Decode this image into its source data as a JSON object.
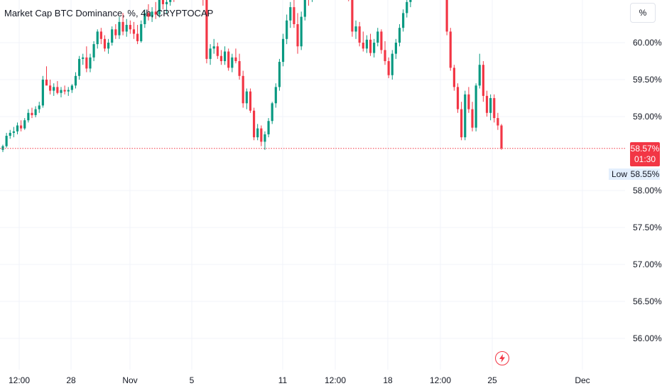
{
  "header": {
    "title": "Market Cap BTC Dominance, %, 4h, CRYPTOCAP"
  },
  "scale_button": {
    "label": "%"
  },
  "price_badge": {
    "value": "58.57%",
    "countdown": "01:30"
  },
  "low_marker": {
    "label": "Low",
    "value": "58.55%"
  },
  "event_icon": {
    "icon": "lightning-icon"
  },
  "colors": {
    "up": "#089981",
    "down": "#f23645",
    "grid": "#f0f3fa",
    "current_line": "#f23645"
  },
  "chart_data": {
    "type": "candlestick",
    "y_axis": {
      "ticks": [
        {
          "value": 60.0,
          "label": "60.00%"
        },
        {
          "value": 59.5,
          "label": "59.50%"
        },
        {
          "value": 59.0,
          "label": "59.00%"
        },
        {
          "value": 58.0,
          "label": "58.00%"
        },
        {
          "value": 57.5,
          "label": "57.50%"
        },
        {
          "value": 57.0,
          "label": "57.00%"
        },
        {
          "value": 56.5,
          "label": "56.50%"
        },
        {
          "value": 56.0,
          "label": "56.00%"
        }
      ]
    },
    "x_axis": {
      "ticks": [
        "12:00",
        "28",
        "Nov",
        "5",
        "11",
        "12:00",
        "18",
        "12:00",
        "25",
        "Dec"
      ]
    },
    "current_value": 58.57,
    "low_value": 58.55,
    "candles": [
      [
        58.55,
        58.62,
        58.52,
        58.6
      ],
      [
        58.6,
        58.78,
        58.58,
        58.74
      ],
      [
        58.74,
        58.82,
        58.7,
        58.78
      ],
      [
        58.78,
        58.86,
        58.72,
        58.8
      ],
      [
        58.8,
        58.92,
        58.76,
        58.88
      ],
      [
        58.88,
        58.95,
        58.8,
        58.84
      ],
      [
        58.84,
        58.98,
        58.82,
        58.95
      ],
      [
        58.95,
        59.1,
        58.92,
        59.05
      ],
      [
        59.05,
        59.12,
        58.98,
        59.02
      ],
      [
        59.02,
        59.14,
        58.99,
        59.1
      ],
      [
        59.1,
        59.2,
        59.05,
        59.15
      ],
      [
        59.15,
        59.55,
        59.12,
        59.5
      ],
      [
        59.5,
        59.68,
        59.44,
        59.42
      ],
      [
        59.42,
        59.5,
        59.3,
        59.35
      ],
      [
        59.35,
        59.45,
        59.28,
        59.4
      ],
      [
        59.4,
        59.48,
        59.3,
        59.32
      ],
      [
        59.32,
        59.4,
        59.26,
        59.36
      ],
      [
        59.36,
        59.42,
        59.3,
        59.34
      ],
      [
        59.34,
        59.4,
        59.28,
        59.36
      ],
      [
        59.36,
        59.44,
        59.32,
        59.42
      ],
      [
        59.42,
        59.6,
        59.38,
        59.55
      ],
      [
        59.55,
        59.82,
        59.5,
        59.78
      ],
      [
        59.78,
        59.85,
        59.7,
        59.8
      ],
      [
        59.8,
        59.95,
        59.6,
        59.65
      ],
      [
        59.65,
        59.85,
        59.6,
        59.8
      ],
      [
        59.8,
        60.02,
        59.75,
        59.98
      ],
      [
        59.98,
        60.18,
        59.92,
        60.15
      ],
      [
        60.15,
        60.2,
        59.98,
        60.05
      ],
      [
        60.05,
        60.1,
        59.88,
        59.92
      ],
      [
        59.92,
        60.05,
        59.85,
        60.0
      ],
      [
        60.0,
        60.22,
        59.96,
        60.18
      ],
      [
        60.18,
        60.25,
        60.05,
        60.1
      ],
      [
        60.1,
        60.35,
        60.05,
        60.28
      ],
      [
        60.28,
        60.4,
        60.1,
        60.15
      ],
      [
        60.15,
        60.32,
        60.08,
        60.24
      ],
      [
        60.24,
        60.3,
        60.12,
        60.18
      ],
      [
        60.18,
        60.28,
        60.05,
        60.12
      ],
      [
        60.12,
        60.24,
        59.98,
        60.02
      ],
      [
        60.02,
        60.3,
        60.0,
        60.25
      ],
      [
        60.25,
        60.45,
        60.2,
        60.4
      ],
      [
        60.4,
        60.52,
        60.3,
        60.35
      ],
      [
        60.35,
        60.48,
        60.28,
        60.42
      ],
      [
        60.42,
        60.55,
        60.32,
        60.38
      ],
      [
        60.38,
        60.62,
        60.34,
        60.58
      ],
      [
        60.58,
        60.66,
        60.45,
        60.52
      ],
      [
        60.52,
        60.62,
        60.4,
        60.55
      ],
      [
        60.55,
        60.7,
        60.5,
        60.66
      ],
      [
        60.66,
        60.72,
        60.55,
        60.62
      ],
      [
        60.62,
        60.78,
        60.58,
        60.74
      ],
      [
        60.74,
        60.8,
        60.62,
        60.7
      ],
      [
        60.7,
        60.82,
        60.66,
        60.78
      ],
      [
        60.78,
        60.82,
        60.7,
        60.75
      ],
      [
        60.75,
        60.82,
        60.68,
        60.79
      ],
      [
        60.79,
        60.82,
        60.72,
        60.76
      ],
      [
        60.76,
        60.82,
        60.7,
        60.8
      ],
      [
        60.8,
        60.82,
        60.5,
        60.58
      ],
      [
        60.58,
        60.64,
        59.72,
        59.78
      ],
      [
        59.78,
        59.98,
        59.7,
        59.92
      ],
      [
        59.92,
        60.05,
        59.85,
        59.95
      ],
      [
        59.95,
        60.0,
        59.78,
        59.82
      ],
      [
        59.82,
        59.9,
        59.7,
        59.75
      ],
      [
        59.75,
        59.95,
        59.7,
        59.88
      ],
      [
        59.88,
        59.92,
        59.62,
        59.66
      ],
      [
        59.66,
        59.85,
        59.6,
        59.8
      ],
      [
        59.8,
        59.92,
        59.72,
        59.75
      ],
      [
        59.75,
        59.85,
        59.5,
        59.55
      ],
      [
        59.55,
        59.62,
        59.12,
        59.18
      ],
      [
        59.18,
        59.38,
        59.1,
        59.34
      ],
      [
        59.34,
        59.38,
        59.05,
        59.08
      ],
      [
        59.08,
        59.12,
        58.68,
        58.72
      ],
      [
        58.72,
        58.9,
        58.68,
        58.84
      ],
      [
        58.84,
        58.88,
        58.6,
        58.66
      ],
      [
        58.66,
        58.8,
        58.55,
        58.76
      ],
      [
        58.76,
        58.98,
        58.72,
        58.94
      ],
      [
        58.94,
        59.2,
        58.9,
        59.18
      ],
      [
        59.18,
        59.45,
        59.12,
        59.4
      ],
      [
        59.4,
        59.78,
        59.35,
        59.74
      ],
      [
        59.74,
        60.12,
        59.68,
        60.05
      ],
      [
        60.05,
        60.38,
        59.98,
        60.3
      ],
      [
        60.3,
        60.55,
        60.2,
        60.48
      ],
      [
        60.48,
        60.6,
        60.2,
        60.25
      ],
      [
        60.25,
        60.4,
        59.85,
        59.95
      ],
      [
        59.95,
        60.42,
        59.9,
        60.35
      ],
      [
        60.35,
        60.8,
        60.3,
        60.72
      ],
      [
        60.72,
        60.82,
        60.5,
        60.6
      ],
      [
        60.6,
        60.82,
        60.55,
        60.76
      ],
      [
        60.76,
        60.82,
        60.68,
        60.8
      ],
      [
        60.8,
        60.82,
        60.7,
        60.74
      ],
      [
        60.74,
        60.82,
        60.68,
        60.78
      ],
      [
        60.78,
        60.82,
        60.62,
        60.68
      ],
      [
        60.68,
        60.82,
        60.6,
        60.76
      ],
      [
        60.76,
        60.82,
        60.66,
        60.72
      ],
      [
        60.72,
        60.82,
        60.66,
        60.76
      ],
      [
        60.76,
        60.82,
        60.7,
        60.74
      ],
      [
        60.74,
        60.82,
        60.68,
        60.78
      ],
      [
        60.78,
        60.82,
        60.56,
        60.6
      ],
      [
        60.6,
        60.64,
        60.08,
        60.15
      ],
      [
        60.15,
        60.3,
        60.05,
        60.22
      ],
      [
        60.22,
        60.28,
        59.95,
        60.0
      ],
      [
        60.0,
        60.15,
        59.88,
        59.92
      ],
      [
        59.92,
        60.1,
        59.86,
        60.04
      ],
      [
        60.04,
        60.12,
        59.82,
        59.86
      ],
      [
        59.86,
        60.05,
        59.8,
        60.0
      ],
      [
        60.0,
        60.2,
        59.95,
        60.15
      ],
      [
        60.15,
        60.18,
        59.85,
        59.9
      ],
      [
        59.9,
        60.02,
        59.7,
        59.75
      ],
      [
        59.75,
        59.8,
        59.52,
        59.56
      ],
      [
        59.56,
        59.9,
        59.5,
        59.85
      ],
      [
        59.85,
        60.05,
        59.78,
        60.0
      ],
      [
        60.0,
        60.25,
        59.95,
        60.2
      ],
      [
        60.2,
        60.45,
        60.15,
        60.4
      ],
      [
        60.4,
        60.6,
        60.34,
        60.55
      ],
      [
        60.55,
        60.7,
        60.48,
        60.65
      ],
      [
        60.65,
        60.8,
        60.6,
        60.76
      ],
      [
        60.76,
        60.82,
        60.68,
        60.8
      ],
      [
        60.8,
        60.82,
        60.72,
        60.78
      ],
      [
        60.78,
        60.82,
        60.7,
        60.8
      ],
      [
        60.8,
        60.82,
        60.72,
        60.76
      ],
      [
        60.76,
        60.82,
        60.7,
        60.8
      ],
      [
        60.8,
        60.82,
        60.62,
        60.66
      ],
      [
        60.66,
        60.82,
        60.6,
        60.78
      ],
      [
        60.78,
        60.82,
        60.58,
        60.62
      ],
      [
        60.62,
        60.66,
        60.1,
        60.15
      ],
      [
        60.15,
        60.2,
        59.62,
        59.66
      ],
      [
        59.66,
        59.7,
        59.35,
        59.4
      ],
      [
        59.4,
        59.45,
        59.05,
        59.1
      ],
      [
        59.1,
        59.2,
        58.68,
        58.72
      ],
      [
        58.72,
        59.35,
        58.68,
        59.3
      ],
      [
        59.3,
        59.4,
        59.05,
        59.1
      ],
      [
        59.1,
        59.2,
        58.8,
        58.85
      ],
      [
        58.85,
        59.45,
        58.8,
        59.42
      ],
      [
        59.42,
        59.85,
        59.38,
        59.7
      ],
      [
        59.7,
        59.75,
        59.2,
        59.28
      ],
      [
        59.28,
        59.35,
        59.0,
        59.05
      ],
      [
        59.05,
        59.3,
        58.95,
        59.25
      ],
      [
        59.25,
        59.3,
        58.92,
        58.98
      ],
      [
        58.98,
        59.05,
        58.82,
        58.88
      ],
      [
        58.88,
        58.9,
        58.55,
        58.57
      ]
    ]
  }
}
